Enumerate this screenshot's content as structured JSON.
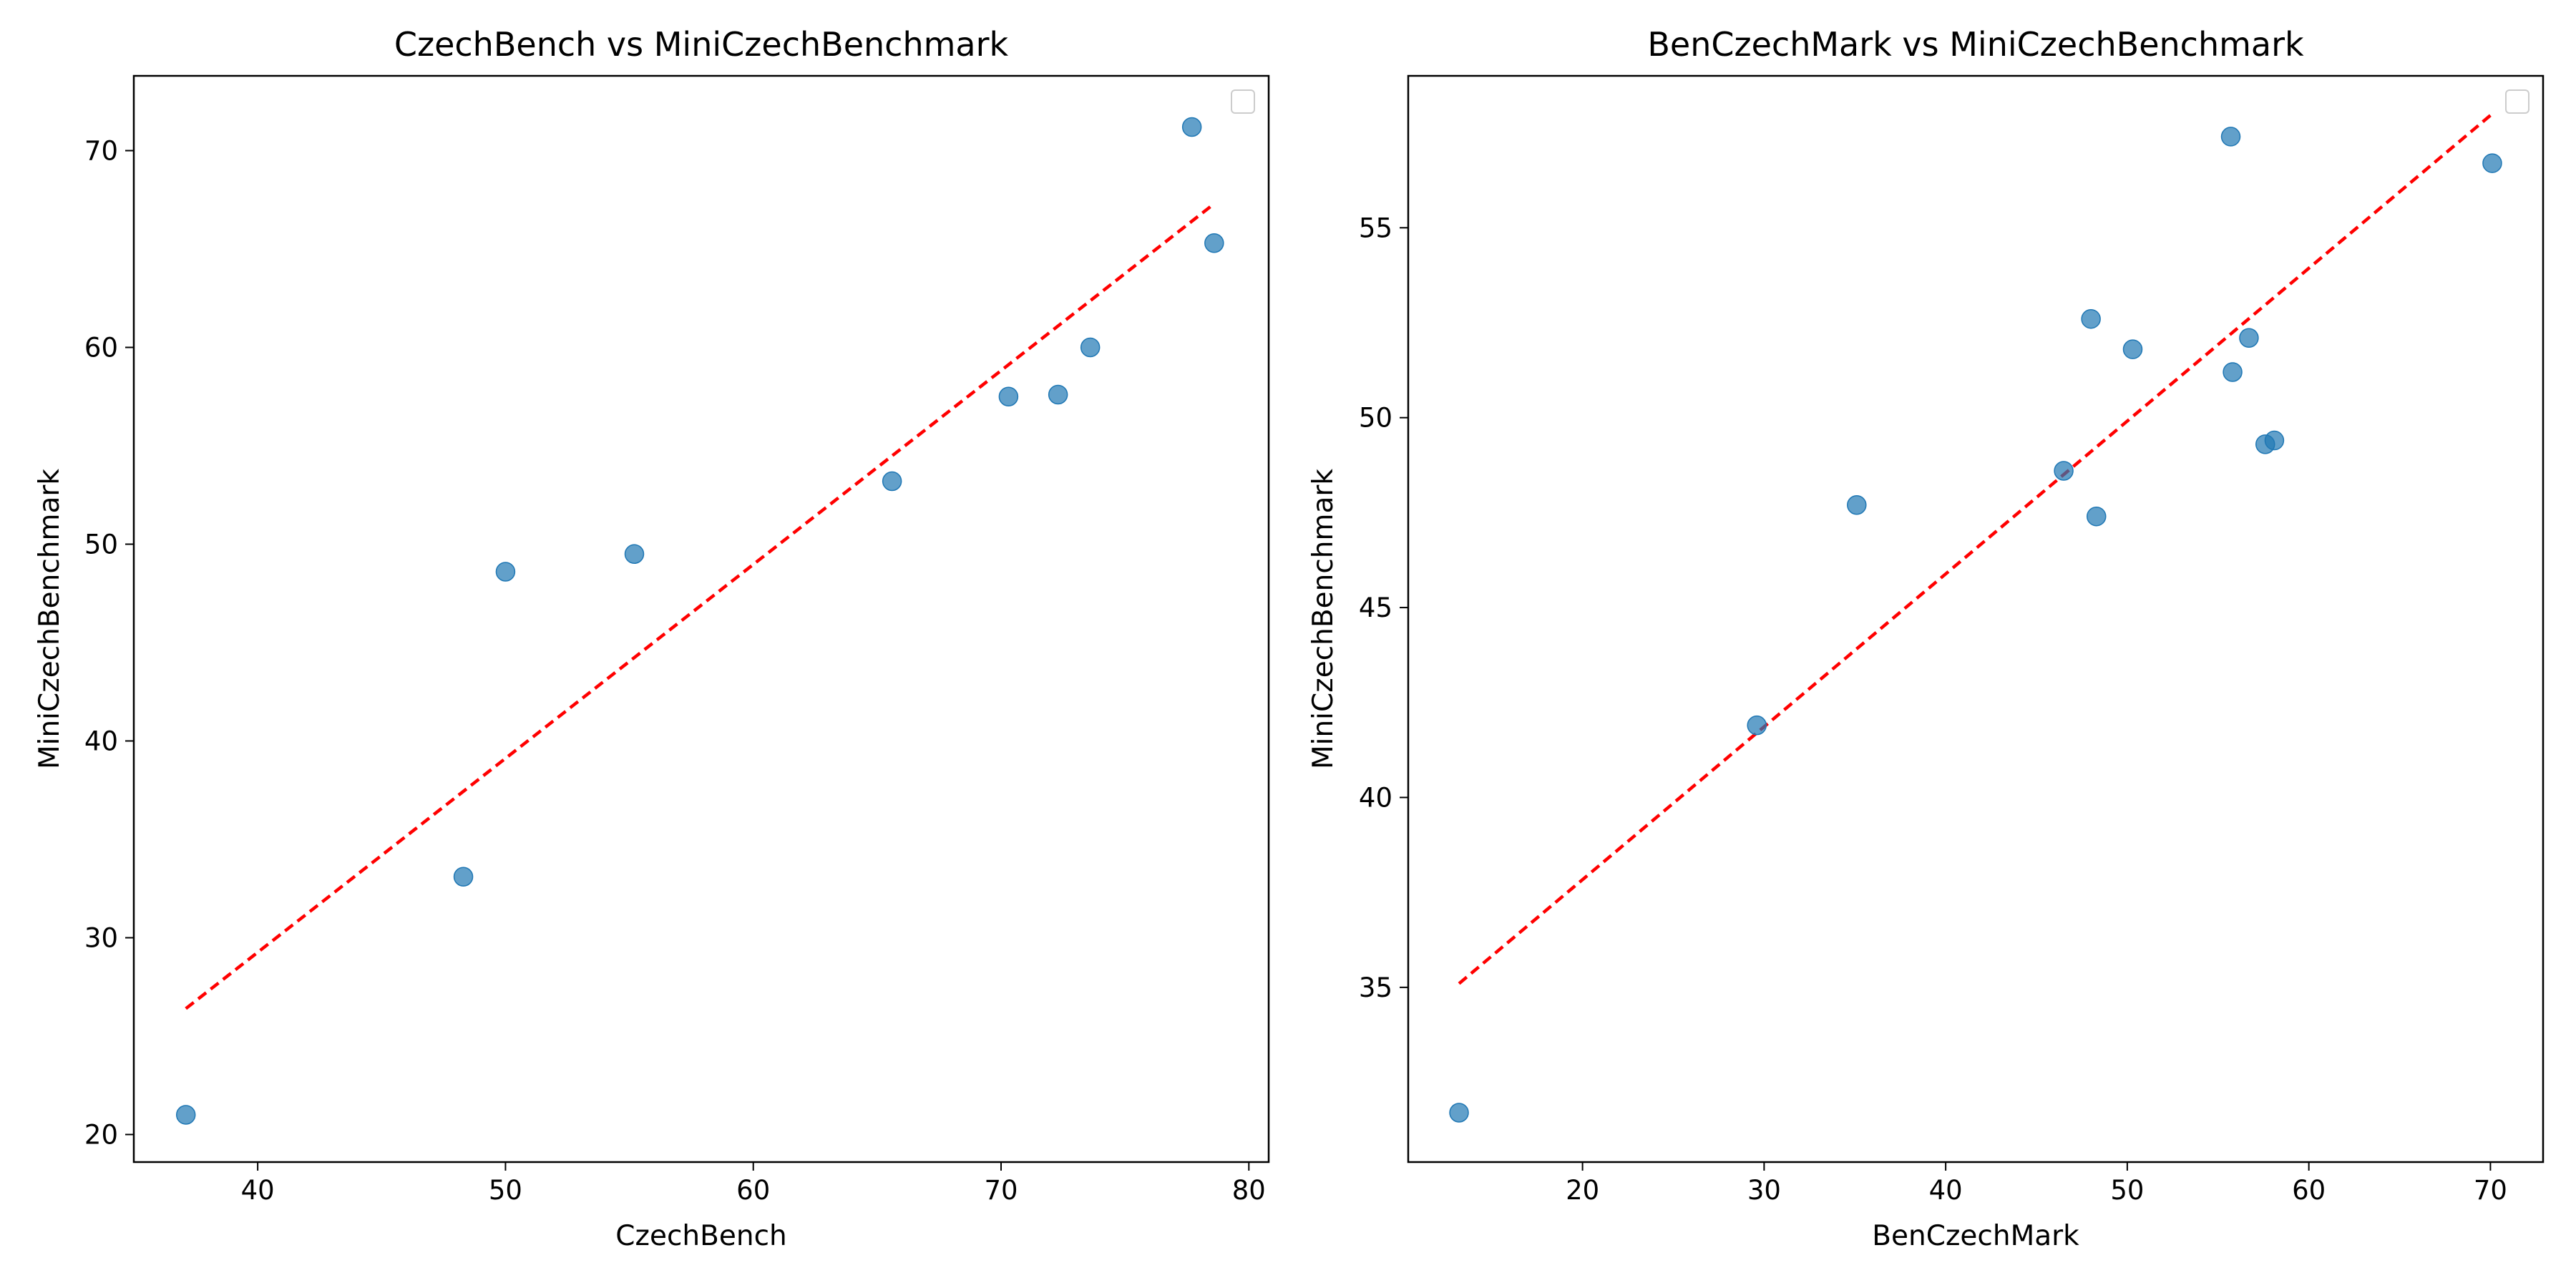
{
  "chart_data": [
    {
      "type": "scatter",
      "title": "CzechBench vs MiniCzechBenchmark",
      "xlabel": "CzechBench",
      "ylabel": "MiniCzechBenchmark",
      "xlim": [
        35.0,
        80.8
      ],
      "ylim": [
        18.6,
        73.8
      ],
      "xticks": [
        "40",
        "50",
        "60",
        "70",
        "80"
      ],
      "yticks": [
        "20",
        "30",
        "40",
        "50",
        "60",
        "70"
      ],
      "xtick_values": [
        40,
        50,
        60,
        70,
        80
      ],
      "ytick_values": [
        20,
        30,
        40,
        50,
        60,
        70
      ],
      "grid": false,
      "legend": "top-right (empty)",
      "points": [
        {
          "x": 37.1,
          "y": 21.0
        },
        {
          "x": 48.3,
          "y": 33.1
        },
        {
          "x": 50.0,
          "y": 48.6
        },
        {
          "x": 55.2,
          "y": 49.5
        },
        {
          "x": 65.6,
          "y": 53.2
        },
        {
          "x": 70.3,
          "y": 57.5
        },
        {
          "x": 72.3,
          "y": 57.6
        },
        {
          "x": 73.6,
          "y": 60.0
        },
        {
          "x": 77.7,
          "y": 71.2
        },
        {
          "x": 78.6,
          "y": 65.3
        }
      ],
      "trendline": {
        "x": [
          37.1,
          78.6
        ],
        "y": [
          26.4,
          67.3
        ],
        "style": "dashed"
      },
      "point_color": "#1f77b4",
      "line_color": "#ff0000"
    },
    {
      "type": "scatter",
      "title": "BenCzechMark vs MiniCzechBenchmark",
      "xlabel": "BenCzechMark",
      "ylabel": "MiniCzechBenchmark",
      "xlim": [
        10.4,
        72.9
      ],
      "ylim": [
        30.4,
        59.0
      ],
      "xticks": [
        "20",
        "30",
        "40",
        "50",
        "60",
        "70"
      ],
      "yticks": [
        "35",
        "40",
        "45",
        "50",
        "55"
      ],
      "xtick_values": [
        20,
        30,
        40,
        50,
        60,
        70
      ],
      "ytick_values": [
        35,
        40,
        45,
        50,
        55
      ],
      "grid": false,
      "legend": "top-right (empty)",
      "points": [
        {
          "x": 13.2,
          "y": 31.7
        },
        {
          "x": 29.6,
          "y": 41.9
        },
        {
          "x": 35.1,
          "y": 47.7
        },
        {
          "x": 46.5,
          "y": 48.6
        },
        {
          "x": 48.0,
          "y": 52.6
        },
        {
          "x": 48.3,
          "y": 47.4
        },
        {
          "x": 50.3,
          "y": 51.8
        },
        {
          "x": 55.7,
          "y": 57.4
        },
        {
          "x": 55.8,
          "y": 51.2
        },
        {
          "x": 56.7,
          "y": 52.1
        },
        {
          "x": 57.6,
          "y": 49.3
        },
        {
          "x": 58.1,
          "y": 49.4
        },
        {
          "x": 70.1,
          "y": 56.7
        }
      ],
      "trendline": {
        "x": [
          13.2,
          70.1
        ],
        "y": [
          35.1,
          58.0
        ],
        "style": "dashed"
      },
      "point_color": "#1f77b4",
      "line_color": "#ff0000"
    }
  ]
}
